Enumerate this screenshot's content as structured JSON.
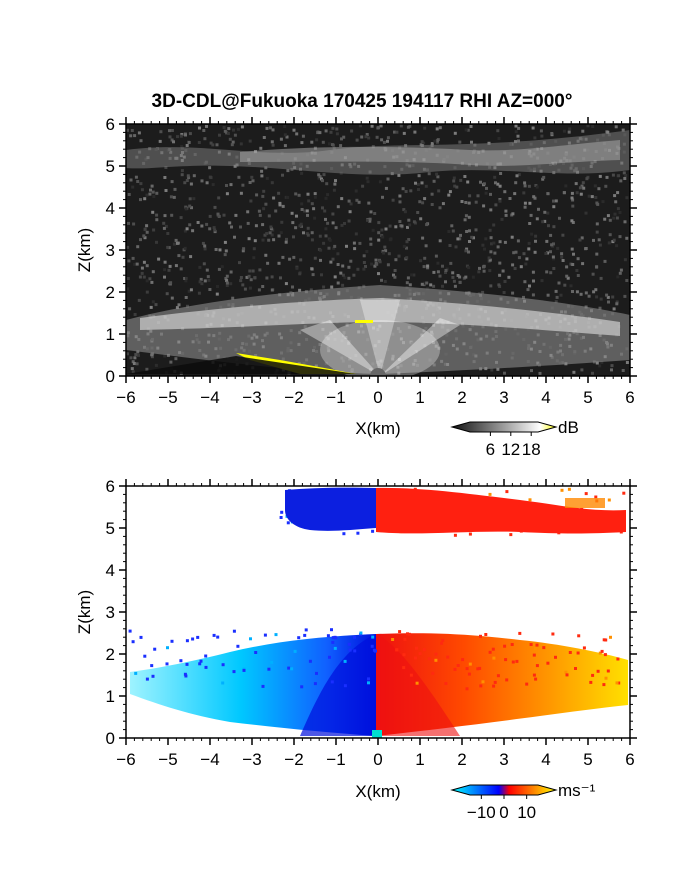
{
  "title": "3D-CDL@Fukuoka 170425 194117 RHI AZ=000°",
  "chart_data": [
    {
      "type": "heatmap",
      "panel": "reflectivity",
      "xlabel": "X(km)",
      "ylabel": "Z(km)",
      "xlim": [
        -6,
        6
      ],
      "ylim": [
        0,
        6
      ],
      "xticks": [
        -6,
        -5,
        -4,
        -3,
        -2,
        -1,
        0,
        1,
        2,
        3,
        4,
        5,
        6
      ],
      "yticks": [
        0,
        1,
        2,
        3,
        4,
        5,
        6
      ],
      "colorbar": {
        "unit": "dB",
        "ticks": [
          6,
          12,
          18
        ],
        "range": [
          0,
          20
        ],
        "colors": [
          "#111111",
          "#ffffff",
          "#ffff00"
        ]
      },
      "features": {
        "noise_background": "dark grey",
        "cloud_layer_upper_km": [
          4.6,
          5.9
        ],
        "aerosol_layer_km": [
          0.5,
          2.2
        ],
        "ground_clutter_yellow_x_km": [
          -3.3,
          -0.6
        ]
      }
    },
    {
      "type": "heatmap",
      "panel": "doppler_velocity",
      "xlabel": "X(km)",
      "ylabel": "Z(km)",
      "xlim": [
        -6,
        6
      ],
      "ylim": [
        0,
        6
      ],
      "xticks": [
        -6,
        -5,
        -4,
        -3,
        -2,
        -1,
        0,
        1,
        2,
        3,
        4,
        5,
        6
      ],
      "yticks": [
        0,
        1,
        2,
        3,
        4,
        5,
        6
      ],
      "colorbar": {
        "unit": "ms⁻¹",
        "ticks": [
          -10,
          0,
          10
        ],
        "range": [
          -15,
          15
        ],
        "colors": [
          "#00ffff",
          "#0000ff",
          "#ff0000",
          "#ffff00"
        ]
      },
      "features": {
        "negative_velocity_x_km": [
          -5.9,
          0
        ],
        "positive_velocity_x_km": [
          0,
          6
        ],
        "lower_layer_top_km": 2.5,
        "upper_layer_km": [
          4.8,
          6.0
        ]
      }
    }
  ]
}
